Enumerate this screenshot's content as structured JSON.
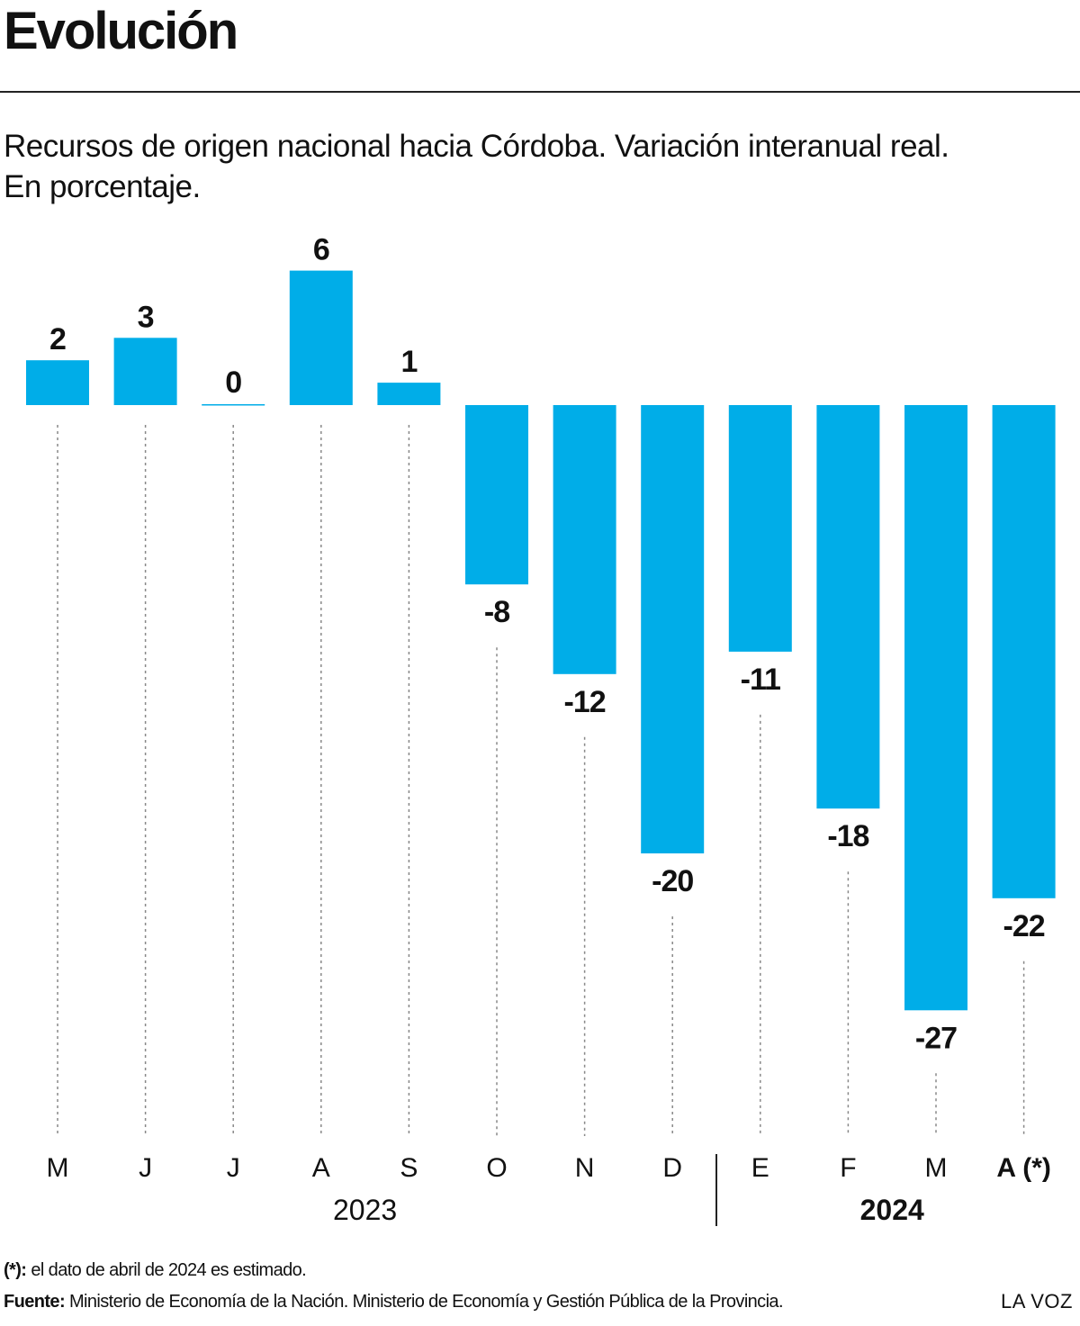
{
  "title": "Evolución",
  "subtitle_line1": "Recursos de origen nacional hacia Córdoba. Variación interanual real.",
  "subtitle_line2": "En porcentaje.",
  "footnote": {
    "key": "(*):",
    "text": "el dato de abril de 2024 es estimado."
  },
  "source": {
    "key": "Fuente:",
    "text": "Ministerio de Economía de la Nación. Ministerio de Economía y Gestión Pública de la Provincia."
  },
  "brand": "LA VOZ",
  "colors": {
    "bar": "#00ADE8",
    "text": "#111111",
    "guide": "#888888"
  },
  "chart_data": {
    "type": "bar",
    "categories": [
      "M",
      "J",
      "J",
      "A",
      "S",
      "O",
      "N",
      "D",
      "E",
      "F",
      "M",
      "A (*)"
    ],
    "values": [
      2,
      3,
      0,
      6,
      1,
      -8,
      -12,
      -20,
      -11,
      -18,
      -27,
      -22
    ],
    "value_labels": [
      "2",
      "3",
      "0",
      "6",
      "1",
      "-8",
      "-12",
      "-20",
      "-11",
      "-18",
      "-27",
      "-22"
    ],
    "groups": [
      {
        "label": "2023",
        "from": 0,
        "to": 7,
        "bold": false
      },
      {
        "label": "2024",
        "from": 8,
        "to": 11,
        "bold": true
      }
    ],
    "bold_categories": [
      11
    ],
    "ylim": [
      -27,
      6
    ],
    "grid": false,
    "legend": "none"
  }
}
